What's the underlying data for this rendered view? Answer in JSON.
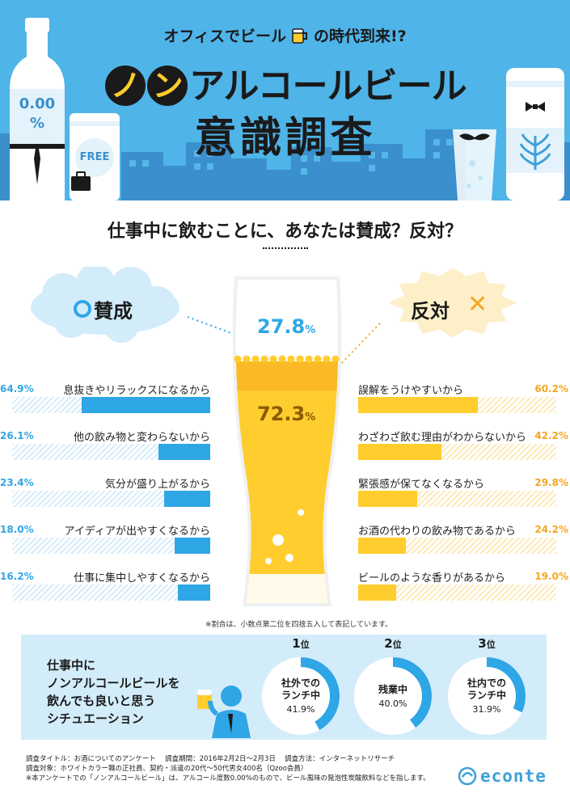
{
  "header": {
    "lead_a": "オフィスでビール",
    "lead_b": "の時代到来!?",
    "title_chip_1": "ノ",
    "title_chip_2": "ン",
    "title_rest": "アルコールビール",
    "title_line2": "意識調査",
    "bottle_label_pct": "0.00",
    "bottle_label_sign": "%",
    "can_label": "FREE"
  },
  "question": "仕事中に飲むことに、あなたは賛成？反対？",
  "colors": {
    "sky": "#4fb4e8",
    "agree": "#2fa6e6",
    "disagree": "#ffcd2e",
    "disagree_text": "#f4a623",
    "panel": "#d3ecfa"
  },
  "agree": {
    "label": "賛成",
    "percent": "27.8",
    "unit": "%"
  },
  "disagree": {
    "label": "反対",
    "percent": "72.3",
    "unit": "%"
  },
  "chart_data": [
    {
      "type": "pie",
      "categories": [
        "賛成",
        "反対"
      ],
      "values": [
        27.8,
        72.3
      ],
      "unit": "%"
    },
    {
      "type": "bar",
      "categories": [
        "息抜きやリラックスになるから",
        "他の飲み物と変わらないから",
        "気分が盛り上がるから",
        "アイディアが出やすくなるから",
        "仕事に集中しやすくなるから"
      ],
      "values": [
        64.9,
        26.1,
        23.4,
        18.0,
        16.2
      ],
      "value_labels": [
        "64.9%",
        "26.1%",
        "23.4%",
        "18.0%",
        "16.2%"
      ],
      "xlim": [
        0,
        100
      ]
    },
    {
      "type": "bar",
      "categories": [
        "誤解をうけやすいから",
        "わざわざ飲む理由がわからないから",
        "緊張感が保てなくなるから",
        "お酒の代わりの飲み物であるから",
        "ビールのような香りがあるから"
      ],
      "values": [
        60.2,
        42.2,
        29.8,
        24.2,
        19.0
      ],
      "value_labels": [
        "60.2%",
        "42.2%",
        "29.8%",
        "24.2%",
        "19.0%"
      ],
      "xlim": [
        0,
        100
      ]
    },
    {
      "type": "pie",
      "title": "仕事中にノンアルコールビールを飲んでも良いと思うシチュエーション",
      "categories": [
        "社外でのランチ中",
        "残業中",
        "社内でのランチ中"
      ],
      "values": [
        41.9,
        40.0,
        31.9
      ],
      "ranks": [
        "1",
        "2",
        "3"
      ],
      "rank_suffix": "位",
      "unit": "%"
    }
  ],
  "note": "※割合は、小数点第二位を四捨五入して表記しています。",
  "situation": {
    "title_lines": [
      "仕事中に",
      "ノンアルコールビールを",
      "飲んでも良いと思う",
      "シチュエーション"
    ],
    "items": [
      {
        "rank": "1",
        "name_lines": [
          "社外での",
          "ランチ中"
        ],
        "value_label": "41.9%",
        "value": 41.9
      },
      {
        "rank": "2",
        "name_lines": [
          "残業中"
        ],
        "value_label": "40.0%",
        "value": 40.0
      },
      {
        "rank": "3",
        "name_lines": [
          "社内での",
          "ランチ中"
        ],
        "value_label": "31.9%",
        "value": 31.9
      }
    ],
    "rank_suffix": "位"
  },
  "footer": {
    "line1": "調査タイトル：お酒についてのアンケート　 調査期間：2016年2月2日～2月3日　 調査方法：インターネットリサーチ",
    "line2": "調査対象：ホワイトカラー職の正社員、契約・派遣の20代～50代男女400名（Qzoo会員）",
    "line3": "※本アンケートでの「ノンアルコールビール」は、アルコール度数0.00%のもので、ビール風味の発泡性炭酸飲料などを指します。"
  },
  "logo": "econte"
}
